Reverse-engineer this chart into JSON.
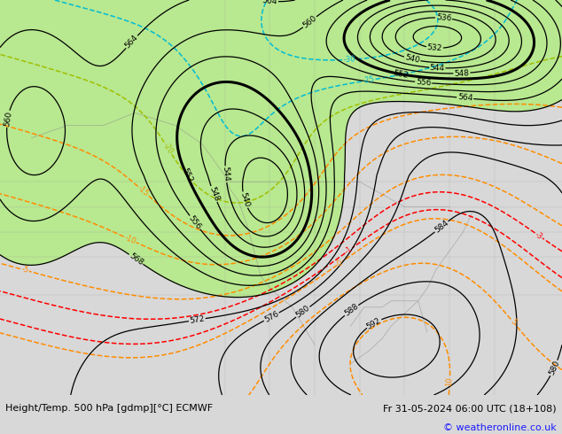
{
  "title_left": "Height/Temp. 500 hPa [gdmp][°C] ECMWF",
  "title_right": "Fr 31-05-2024 06:00 UTC (18+108)",
  "copyright": "© weatheronline.co.uk",
  "bg_color": "#d8d8d8",
  "green_fill": "#b8e890",
  "white_bar": "#ffffff",
  "figsize": [
    6.34,
    4.9
  ],
  "dpi": 100
}
